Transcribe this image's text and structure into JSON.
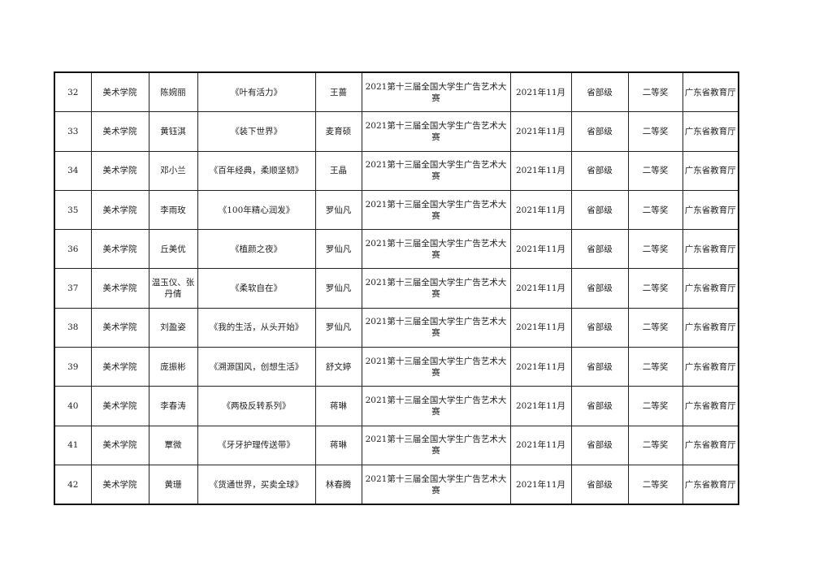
{
  "rows": [
    {
      "no": "32",
      "college": "美术学院",
      "student": "陈婉丽",
      "work": "《叶有活力》",
      "advisor": "王蔷",
      "competition": "2021第十三届全国大学生广告艺术大赛",
      "date": "2021年11月",
      "level": "省部级",
      "award": "二等奖",
      "issuer": "广东省教育厅"
    },
    {
      "no": "33",
      "college": "美术学院",
      "student": "黄钰淇",
      "work": "《装下世界》",
      "advisor": "麦育硕",
      "competition": "2021第十三届全国大学生广告艺术大赛",
      "date": "2021年11月",
      "level": "省部级",
      "award": "二等奖",
      "issuer": "广东省教育厅"
    },
    {
      "no": "34",
      "college": "美术学院",
      "student": "邓小兰",
      "work": "《百年经典，柔顺坚韧》",
      "advisor": "王晶",
      "competition": "2021第十三届全国大学生广告艺术大赛",
      "date": "2021年11月",
      "level": "省部级",
      "award": "二等奖",
      "issuer": "广东省教育厅"
    },
    {
      "no": "35",
      "college": "美术学院",
      "student": "李雨玫",
      "work": "《100年精心润发》",
      "advisor": "罗仙凡",
      "competition": "2021第十三届全国大学生广告艺术大赛",
      "date": "2021年11月",
      "level": "省部级",
      "award": "二等奖",
      "issuer": "广东省教育厅"
    },
    {
      "no": "36",
      "college": "美术学院",
      "student": "丘美优",
      "work": "《植颜之夜》",
      "advisor": "罗仙凡",
      "competition": "2021第十三届全国大学生广告艺术大赛",
      "date": "2021年11月",
      "level": "省部级",
      "award": "二等奖",
      "issuer": "广东省教育厅"
    },
    {
      "no": "37",
      "college": "美术学院",
      "student": "温玉仪、张丹倩",
      "work": "《柔软自在》",
      "advisor": "罗仙凡",
      "competition": "2021第十三届全国大学生广告艺术大赛",
      "date": "2021年11月",
      "level": "省部级",
      "award": "二等奖",
      "issuer": "广东省教育厅"
    },
    {
      "no": "38",
      "college": "美术学院",
      "student": "刘盈姿",
      "work": "《我的生活，从头开始》",
      "advisor": "罗仙凡",
      "competition": "2021第十三届全国大学生广告艺术大赛",
      "date": "2021年11月",
      "level": "省部级",
      "award": "二等奖",
      "issuer": "广东省教育厅"
    },
    {
      "no": "39",
      "college": "美术学院",
      "student": "庞振彬",
      "work": "《溯源国风，创想生活》",
      "advisor": "舒文婷",
      "competition": "2021第十三届全国大学生广告艺术大赛",
      "date": "2021年11月",
      "level": "省部级",
      "award": "二等奖",
      "issuer": "广东省教育厅"
    },
    {
      "no": "40",
      "college": "美术学院",
      "student": "李春涛",
      "work": "《两极反转系列》",
      "advisor": "蒋琳",
      "competition": "2021第十三届全国大学生广告艺术大赛",
      "date": "2021年11月",
      "level": "省部级",
      "award": "二等奖",
      "issuer": "广东省教育厅"
    },
    {
      "no": "41",
      "college": "美术学院",
      "student": "覃微",
      "work": "《牙牙护理传送带》",
      "advisor": "蒋琳",
      "competition": "2021第十三届全国大学生广告艺术大赛",
      "date": "2021年11月",
      "level": "省部级",
      "award": "二等奖",
      "issuer": "广东省教育厅"
    },
    {
      "no": "42",
      "college": "美术学院",
      "student": "黄珊",
      "work": "《货通世界，买卖全球》",
      "advisor": "林春腾",
      "competition": "2021第十三届全国大学生广告艺术大赛",
      "date": "2021年11月",
      "level": "省部级",
      "award": "二等奖",
      "issuer": "广东省教育厅"
    }
  ]
}
